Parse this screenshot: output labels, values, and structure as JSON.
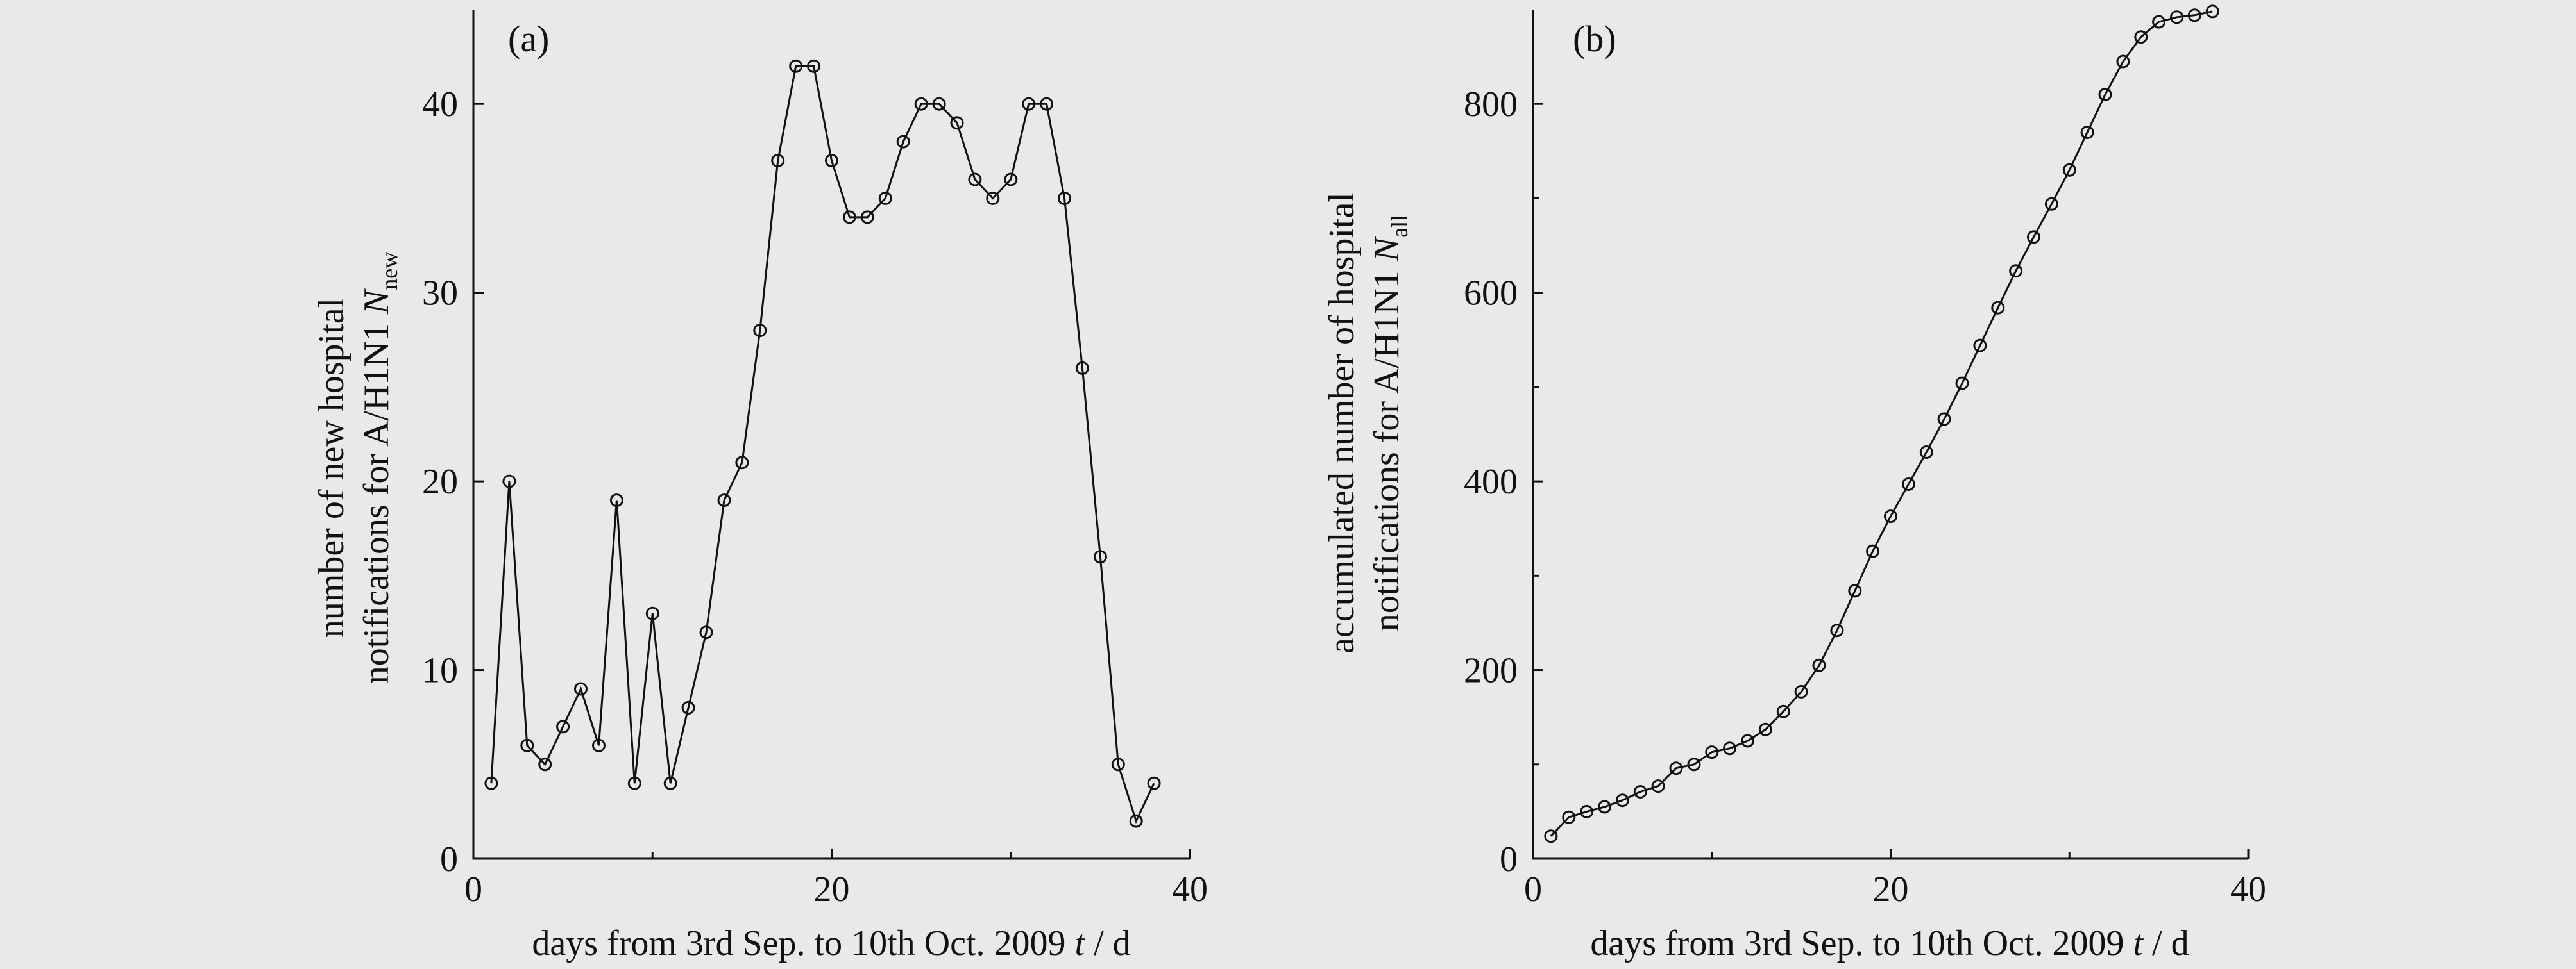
{
  "chart_data": [
    {
      "type": "line",
      "panel_label": "(a)",
      "xlabel_parts": [
        "days from 3rd Sep. to 10th Oct. 2009 ",
        "t",
        " / d"
      ],
      "ylabel_line1": "number of new hospital",
      "ylabel_line2_parts": [
        "notifications for A/H1N1 ",
        "N",
        "new"
      ],
      "xlim": [
        0,
        40
      ],
      "ylim": [
        0,
        45
      ],
      "xticks": [
        0,
        20,
        40
      ],
      "yticks": [
        0,
        10,
        20,
        30,
        40
      ],
      "xtick_labels": [
        "0",
        "20",
        "40"
      ],
      "ytick_labels": [
        "0",
        "10",
        "20",
        "30",
        "40"
      ],
      "minor_xticks": [
        10,
        30
      ],
      "x": [
        1,
        2,
        3,
        4,
        5,
        6,
        7,
        8,
        9,
        10,
        11,
        12,
        13,
        14,
        15,
        16,
        17,
        18,
        19,
        20,
        21,
        22,
        23,
        24,
        25,
        26,
        27,
        28,
        29,
        30,
        31,
        32,
        33,
        34,
        35,
        36,
        37,
        38
      ],
      "values": [
        4,
        20,
        6,
        5,
        7,
        9,
        6,
        19,
        4,
        13,
        4,
        8,
        12,
        19,
        21,
        28,
        37,
        42,
        42,
        37,
        34,
        34,
        35,
        38,
        40,
        40,
        39,
        36,
        35,
        36,
        40,
        40,
        35,
        26,
        16,
        5,
        2,
        4
      ],
      "grid": false,
      "marker": "open-circle"
    },
    {
      "type": "line",
      "panel_label": "(b)",
      "xlabel_parts": [
        "days from 3rd Sep. to 10th Oct. 2009 ",
        "t",
        " / d"
      ],
      "ylabel_line1": "accumulated number of hospital",
      "ylabel_line2_parts": [
        "notifications for A/H1N1 ",
        "N",
        "all"
      ],
      "xlim": [
        0,
        40
      ],
      "ylim": [
        0,
        900
      ],
      "xticks": [
        0,
        20,
        40
      ],
      "yticks": [
        0,
        200,
        400,
        600,
        800
      ],
      "xtick_labels": [
        "0",
        "20",
        "40"
      ],
      "ytick_labels": [
        "0",
        "200",
        "400",
        "600",
        "800"
      ],
      "minor_xticks": [
        10,
        30
      ],
      "minor_yticks": [
        100,
        300,
        500,
        700
      ],
      "x": [
        1,
        2,
        3,
        4,
        5,
        6,
        7,
        8,
        9,
        10,
        11,
        12,
        13,
        14,
        15,
        16,
        17,
        18,
        19,
        20,
        21,
        22,
        23,
        24,
        25,
        26,
        27,
        28,
        29,
        30,
        31,
        32,
        33,
        34,
        35,
        36,
        37,
        38
      ],
      "values": [
        24,
        44,
        50,
        55,
        62,
        71,
        77,
        96,
        100,
        113,
        117,
        125,
        137,
        156,
        177,
        205,
        242,
        284,
        326,
        363,
        397,
        431,
        466,
        504,
        544,
        584,
        623,
        659,
        694,
        730,
        770,
        810,
        845,
        871,
        887,
        892,
        894,
        898
      ],
      "grid": false,
      "marker": "open-circle"
    }
  ]
}
